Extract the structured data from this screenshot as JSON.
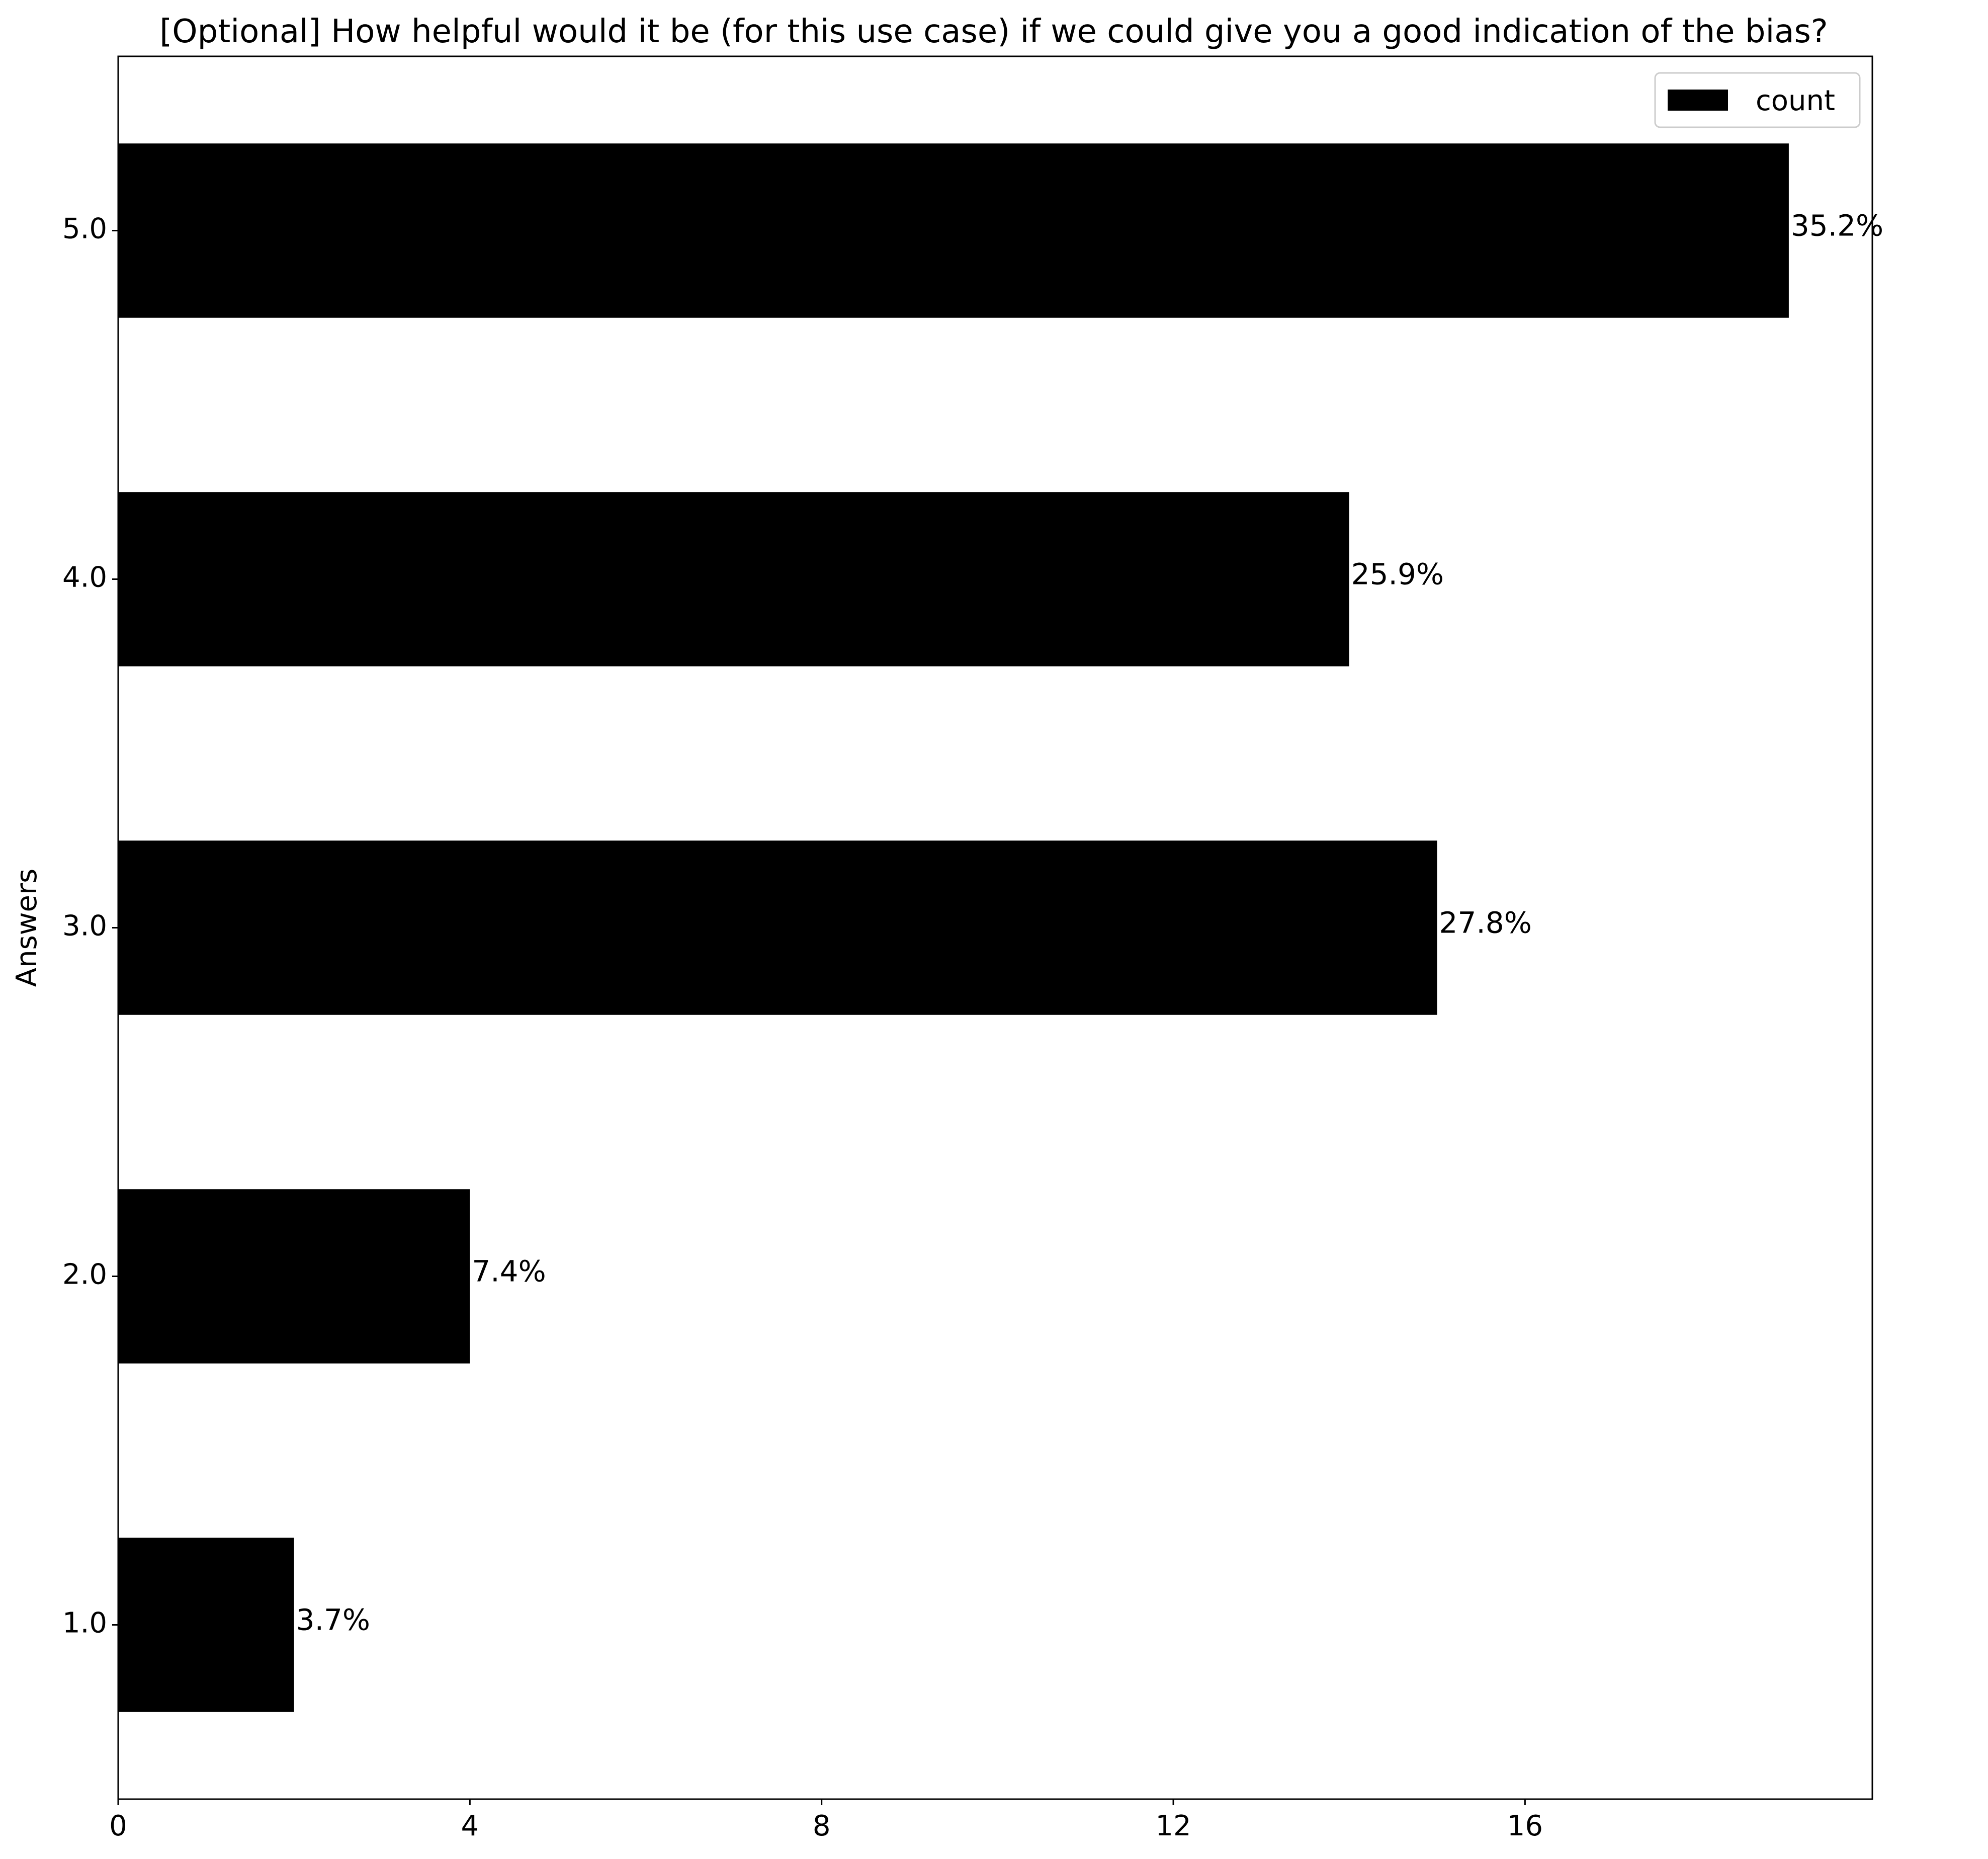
{
  "chart_data": {
    "type": "bar",
    "orientation": "horizontal",
    "title": "[Optional] How helpful would it be (for this use case) if we could give you a good indication of the bias?",
    "xlabel": "",
    "ylabel": "Answers",
    "categories": [
      "1.0",
      "2.0",
      "3.0",
      "4.0",
      "5.0"
    ],
    "series": [
      {
        "name": "count",
        "values": [
          2,
          4,
          15,
          14,
          19
        ],
        "labels": [
          "3.7%",
          "7.4%",
          "27.8%",
          "25.9%",
          "35.2%"
        ],
        "color": "#000000"
      }
    ],
    "xlim": [
      0,
      19.95
    ],
    "xticks": [
      0,
      4,
      8,
      12,
      16
    ],
    "xtick_labels": [
      "0",
      "4",
      "8",
      "12",
      "16"
    ],
    "grid": false,
    "legend": "top-right"
  }
}
